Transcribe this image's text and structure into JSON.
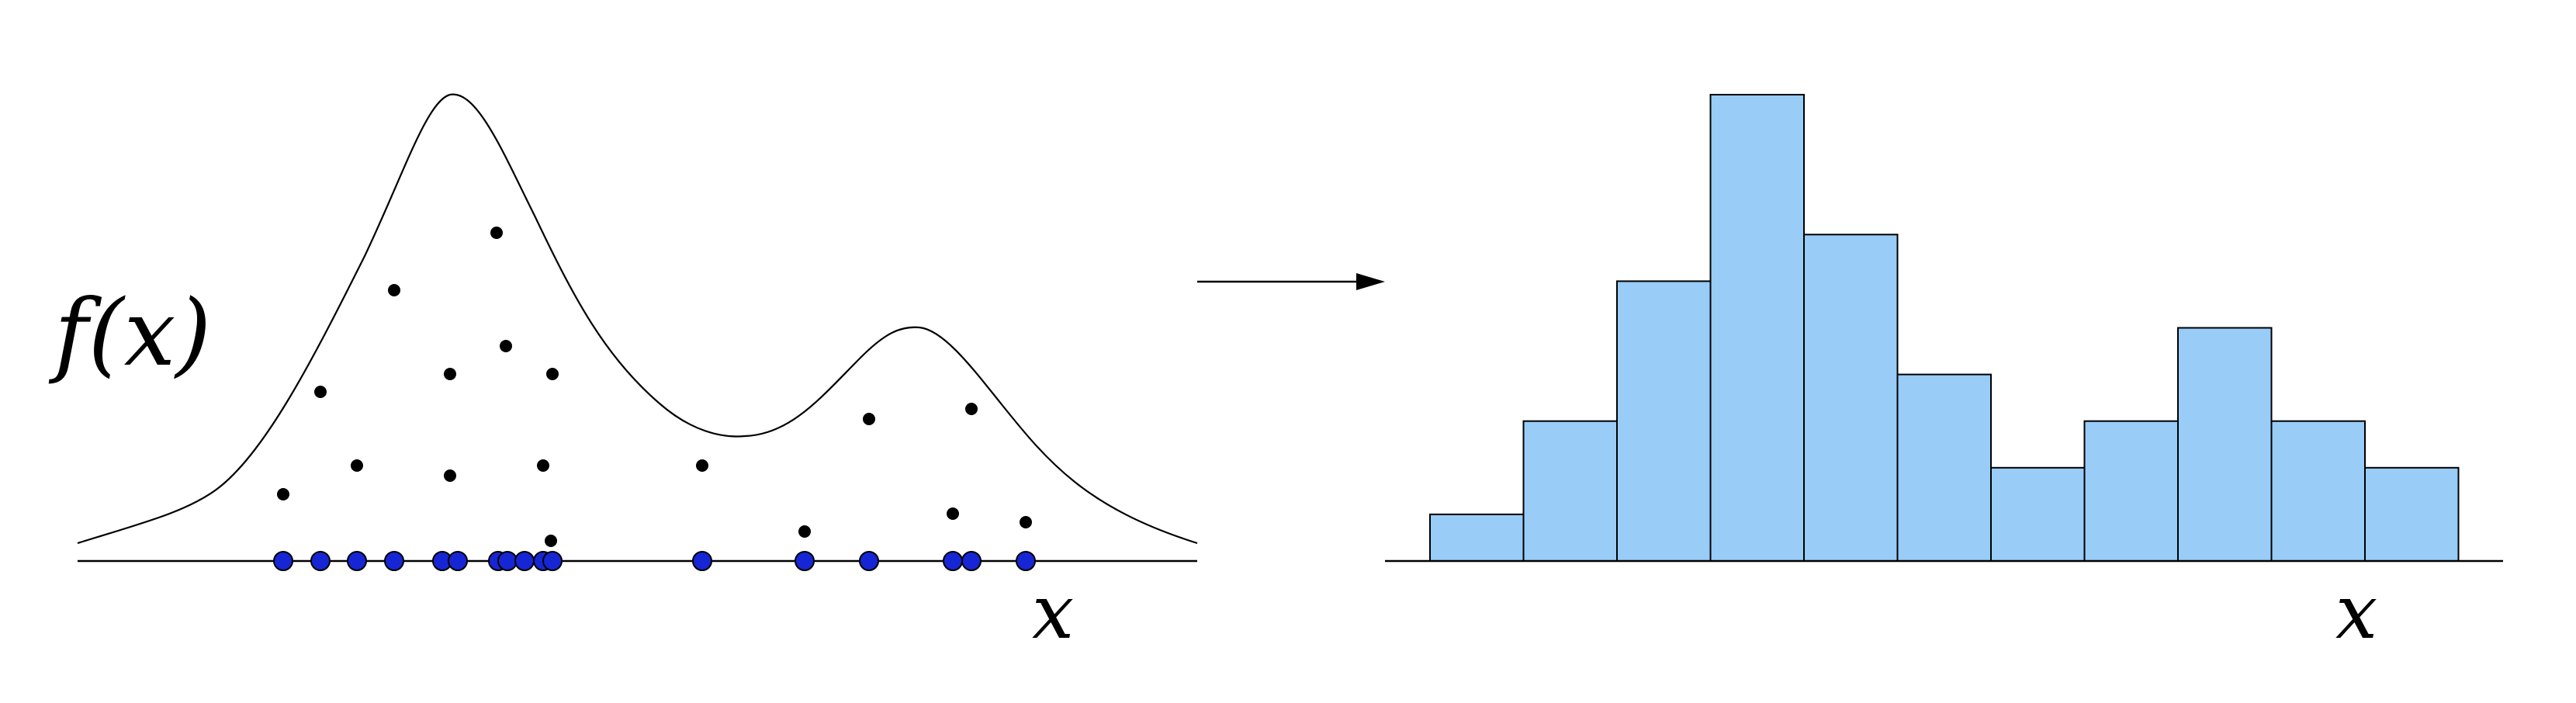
{
  "left_panel": {
    "function_label": "f(x)",
    "x_axis_label": "x",
    "sample_dot_color": "#000000",
    "projected_point_color": "#1626d4"
  },
  "arrow": {
    "direction": "right"
  },
  "right_panel": {
    "x_axis_label": "x",
    "bar_fill": "#99ccf7",
    "bar_stroke": "#000000"
  },
  "chart_data": {
    "type": "bar",
    "categories": [
      "",
      "",
      "",
      "",
      "",
      "",
      "",
      "",
      "",
      "",
      "",
      ""
    ],
    "values": [
      1,
      3,
      6,
      10,
      7,
      4,
      2,
      3,
      5,
      3,
      2,
      0
    ],
    "title": "",
    "xlabel": "x",
    "ylabel": "",
    "ylim": [
      0,
      10
    ]
  }
}
